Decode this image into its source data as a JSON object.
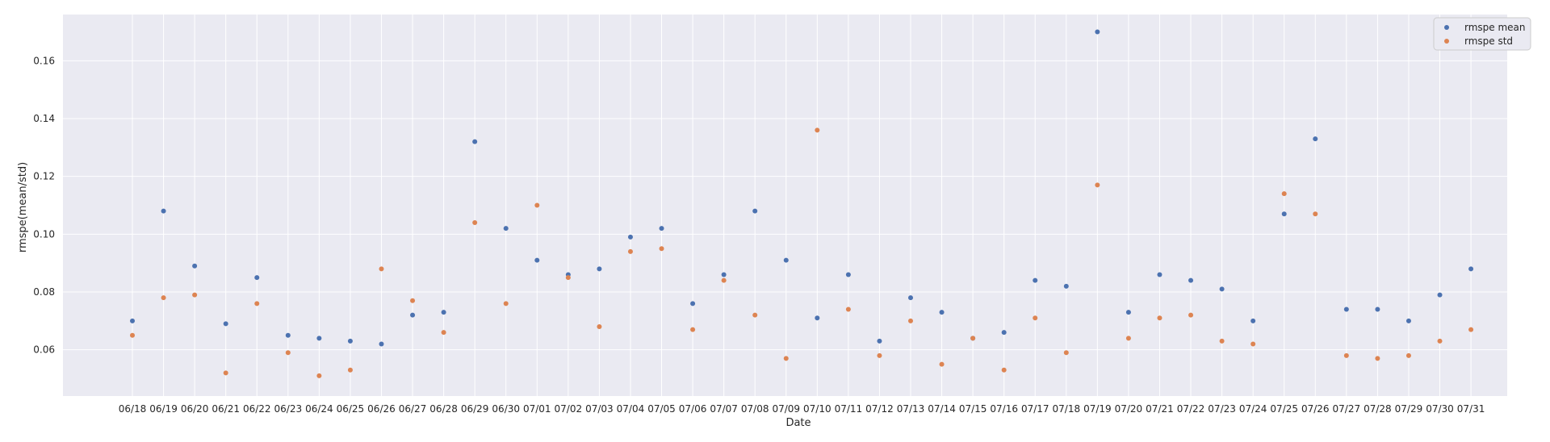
{
  "chart_data": {
    "type": "scatter",
    "title": "",
    "xlabel": "Date",
    "ylabel": "rmspe(mean/std)",
    "ylim": [
      0.044,
      0.176
    ],
    "yticks": [
      0.06,
      0.08,
      0.1,
      0.12,
      0.14,
      0.16
    ],
    "ytick_labels": [
      "0.06",
      "0.08",
      "0.10",
      "0.12",
      "0.14",
      "0.16"
    ],
    "grid": true,
    "legend": "top-right",
    "categories": [
      "06/18",
      "06/19",
      "06/20",
      "06/21",
      "06/22",
      "06/23",
      "06/24",
      "06/25",
      "06/26",
      "06/27",
      "06/28",
      "06/29",
      "06/30",
      "07/01",
      "07/02",
      "07/03",
      "07/04",
      "07/05",
      "07/06",
      "07/07",
      "07/08",
      "07/09",
      "07/10",
      "07/11",
      "07/12",
      "07/13",
      "07/14",
      "07/15",
      "07/16",
      "07/17",
      "07/18",
      "07/19",
      "07/20",
      "07/21",
      "07/22",
      "07/23",
      "07/24",
      "07/25",
      "07/26",
      "07/27",
      "07/28",
      "07/29",
      "07/30",
      "07/31"
    ],
    "series": [
      {
        "name": "rmspe mean",
        "color": "#4c72b0",
        "values": [
          0.07,
          0.108,
          0.089,
          0.069,
          0.085,
          0.065,
          0.064,
          0.063,
          0.062,
          0.072,
          0.073,
          0.132,
          0.102,
          0.091,
          0.086,
          0.088,
          0.099,
          0.102,
          0.076,
          0.086,
          0.108,
          0.091,
          0.071,
          0.086,
          0.063,
          0.078,
          0.073,
          0.064,
          0.066,
          0.084,
          0.082,
          0.17,
          0.073,
          0.086,
          0.084,
          0.081,
          0.07,
          0.107,
          0.133,
          0.074,
          0.074,
          0.07,
          0.079,
          0.088
        ]
      },
      {
        "name": "rmspe std",
        "color": "#dd8452",
        "values": [
          0.065,
          0.078,
          0.079,
          0.052,
          0.076,
          0.059,
          0.051,
          0.053,
          0.088,
          0.077,
          0.066,
          0.104,
          0.076,
          0.11,
          0.085,
          0.068,
          0.094,
          0.095,
          0.067,
          0.084,
          0.072,
          0.057,
          0.136,
          0.074,
          0.058,
          0.07,
          0.055,
          0.064,
          0.053,
          0.071,
          0.059,
          0.117,
          0.064,
          0.071,
          0.072,
          0.063,
          0.062,
          0.114,
          0.107,
          0.058,
          0.057,
          0.058,
          0.063,
          0.067
        ]
      }
    ]
  }
}
